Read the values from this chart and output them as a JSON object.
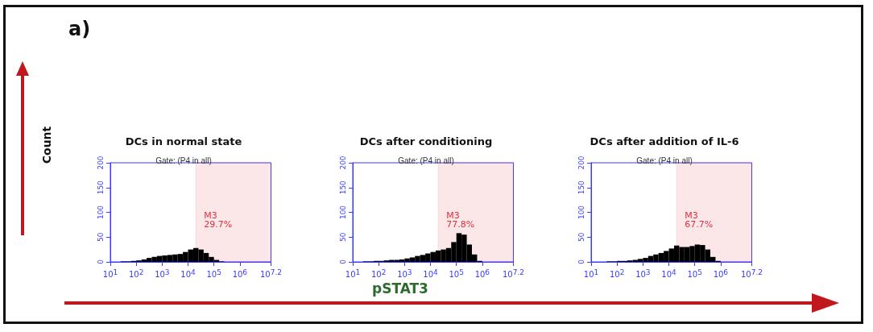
{
  "chart_data": [
    {
      "type": "histogram",
      "title": "DCs in normal state",
      "subtitle": "Gate: (P4 in all)",
      "log": "x",
      "bins": [
        10,
        15.85,
        25.12,
        39.81,
        63.1,
        100,
        158.5,
        251.2,
        398.1,
        631,
        1000,
        1585,
        2512,
        3981,
        6310,
        10000,
        15849,
        25119,
        39811,
        63096,
        100000,
        158489,
        251189,
        398107,
        630957,
        1000000,
        1584893,
        2511886,
        3981072,
        6309573,
        10000000,
        15848932
      ],
      "values": [
        0,
        0,
        1,
        1,
        2,
        3,
        5,
        8,
        10,
        12,
        13,
        14,
        15,
        16,
        20,
        25,
        28,
        25,
        18,
        10,
        4,
        1,
        0,
        0,
        0,
        0,
        0,
        0,
        0,
        0,
        0
      ],
      "color": "#000000",
      "xlim": [
        10,
        15848932
      ],
      "ylim": [
        0,
        200
      ],
      "xticks": [
        {
          "value": 10,
          "label": "10$^{1}$"
        },
        {
          "value": 100,
          "label": "10$^{2}$"
        },
        {
          "value": 1000,
          "label": "10$^{3}$"
        },
        {
          "value": 10000,
          "label": "10$^{4}$"
        },
        {
          "value": 100000,
          "label": "10$^{5}$"
        },
        {
          "value": 1000000,
          "label": "10$^{6}$"
        },
        {
          "value": 15848932,
          "label": "10$^{7.2}$"
        }
      ],
      "yticks": [
        0,
        50,
        100,
        150,
        200
      ],
      "bands": [
        {
          "axis": "x",
          "from": 19953,
          "to": 15848932,
          "color": "#e03040"
        }
      ],
      "annotations": [
        "M3",
        "29.7%"
      ],
      "grid": false
    },
    {
      "type": "histogram",
      "title": "DCs after conditioning",
      "subtitle": "Gate: (P4 in all)",
      "log": "x",
      "bins": [
        10,
        15.85,
        25.12,
        39.81,
        63.1,
        100,
        158.5,
        251.2,
        398.1,
        631,
        1000,
        1585,
        2512,
        3981,
        6310,
        10000,
        15849,
        25119,
        39811,
        63096,
        100000,
        158489,
        251189,
        398107,
        630957,
        1000000,
        1584893,
        2511886,
        3981072,
        6309573,
        10000000,
        15848932
      ],
      "values": [
        0,
        0,
        1,
        1,
        2,
        2,
        3,
        4,
        4,
        5,
        7,
        9,
        12,
        14,
        17,
        20,
        23,
        25,
        28,
        40,
        58,
        55,
        35,
        15,
        2,
        0,
        0,
        0,
        0,
        0,
        0
      ],
      "color": "#000000",
      "xlim": [
        10,
        15848932
      ],
      "ylim": [
        0,
        200
      ],
      "xticks": [
        {
          "value": 10,
          "label": "10$^{1}$"
        },
        {
          "value": 100,
          "label": "10$^{2}$"
        },
        {
          "value": 1000,
          "label": "10$^{3}$"
        },
        {
          "value": 10000,
          "label": "10$^{4}$"
        },
        {
          "value": 100000,
          "label": "10$^{5}$"
        },
        {
          "value": 1000000,
          "label": "10$^{6}$"
        },
        {
          "value": 15848932,
          "label": "10$^{7.2}$"
        }
      ],
      "yticks": [
        0,
        50,
        100,
        150,
        200
      ],
      "bands": [
        {
          "axis": "x",
          "from": 19953,
          "to": 15848932,
          "color": "#e03040"
        }
      ],
      "annotations": [
        "M3",
        "77.8%"
      ],
      "grid": false
    },
    {
      "type": "histogram",
      "title": "DCs after addition of IL-6",
      "subtitle": "Gate: (P4 in all)",
      "log": "x",
      "bins": [
        10,
        15.85,
        25.12,
        39.81,
        63.1,
        100,
        158.5,
        251.2,
        398.1,
        631,
        1000,
        1585,
        2512,
        3981,
        6310,
        10000,
        15849,
        25119,
        39811,
        63096,
        100000,
        158489,
        251189,
        398107,
        630957,
        1000000,
        1584893,
        2511886,
        3981072,
        6309573,
        10000000,
        15848932
      ],
      "values": [
        0,
        0,
        0,
        1,
        1,
        2,
        2,
        3,
        4,
        6,
        8,
        12,
        15,
        18,
        22,
        27,
        33,
        30,
        30,
        32,
        35,
        34,
        25,
        10,
        2,
        0,
        0,
        0,
        0,
        0,
        0
      ],
      "color": "#000000",
      "xlim": [
        10,
        15848932
      ],
      "ylim": [
        0,
        200
      ],
      "xticks": [
        {
          "value": 10,
          "label": "10$^{1}$"
        },
        {
          "value": 100,
          "label": "10$^{2}$"
        },
        {
          "value": 1000,
          "label": "10$^{3}$"
        },
        {
          "value": 10000,
          "label": "10$^{4}$"
        },
        {
          "value": 100000,
          "label": "10$^{5}$"
        },
        {
          "value": 1000000,
          "label": "10$^{6}$"
        },
        {
          "value": 15848932,
          "label": "10$^{7.2}$"
        }
      ],
      "yticks": [
        0,
        50,
        100,
        150,
        200
      ],
      "bands": [
        {
          "axis": "x",
          "from": 19953,
          "to": 15848932,
          "color": "#e03040"
        }
      ],
      "annotations": [
        "M3",
        "67.7%"
      ],
      "grid": false
    },
    {
      "type": "other",
      "title": "a)",
      "ylabel": "Count",
      "xlabel": "pSTAT3"
    }
  ]
}
